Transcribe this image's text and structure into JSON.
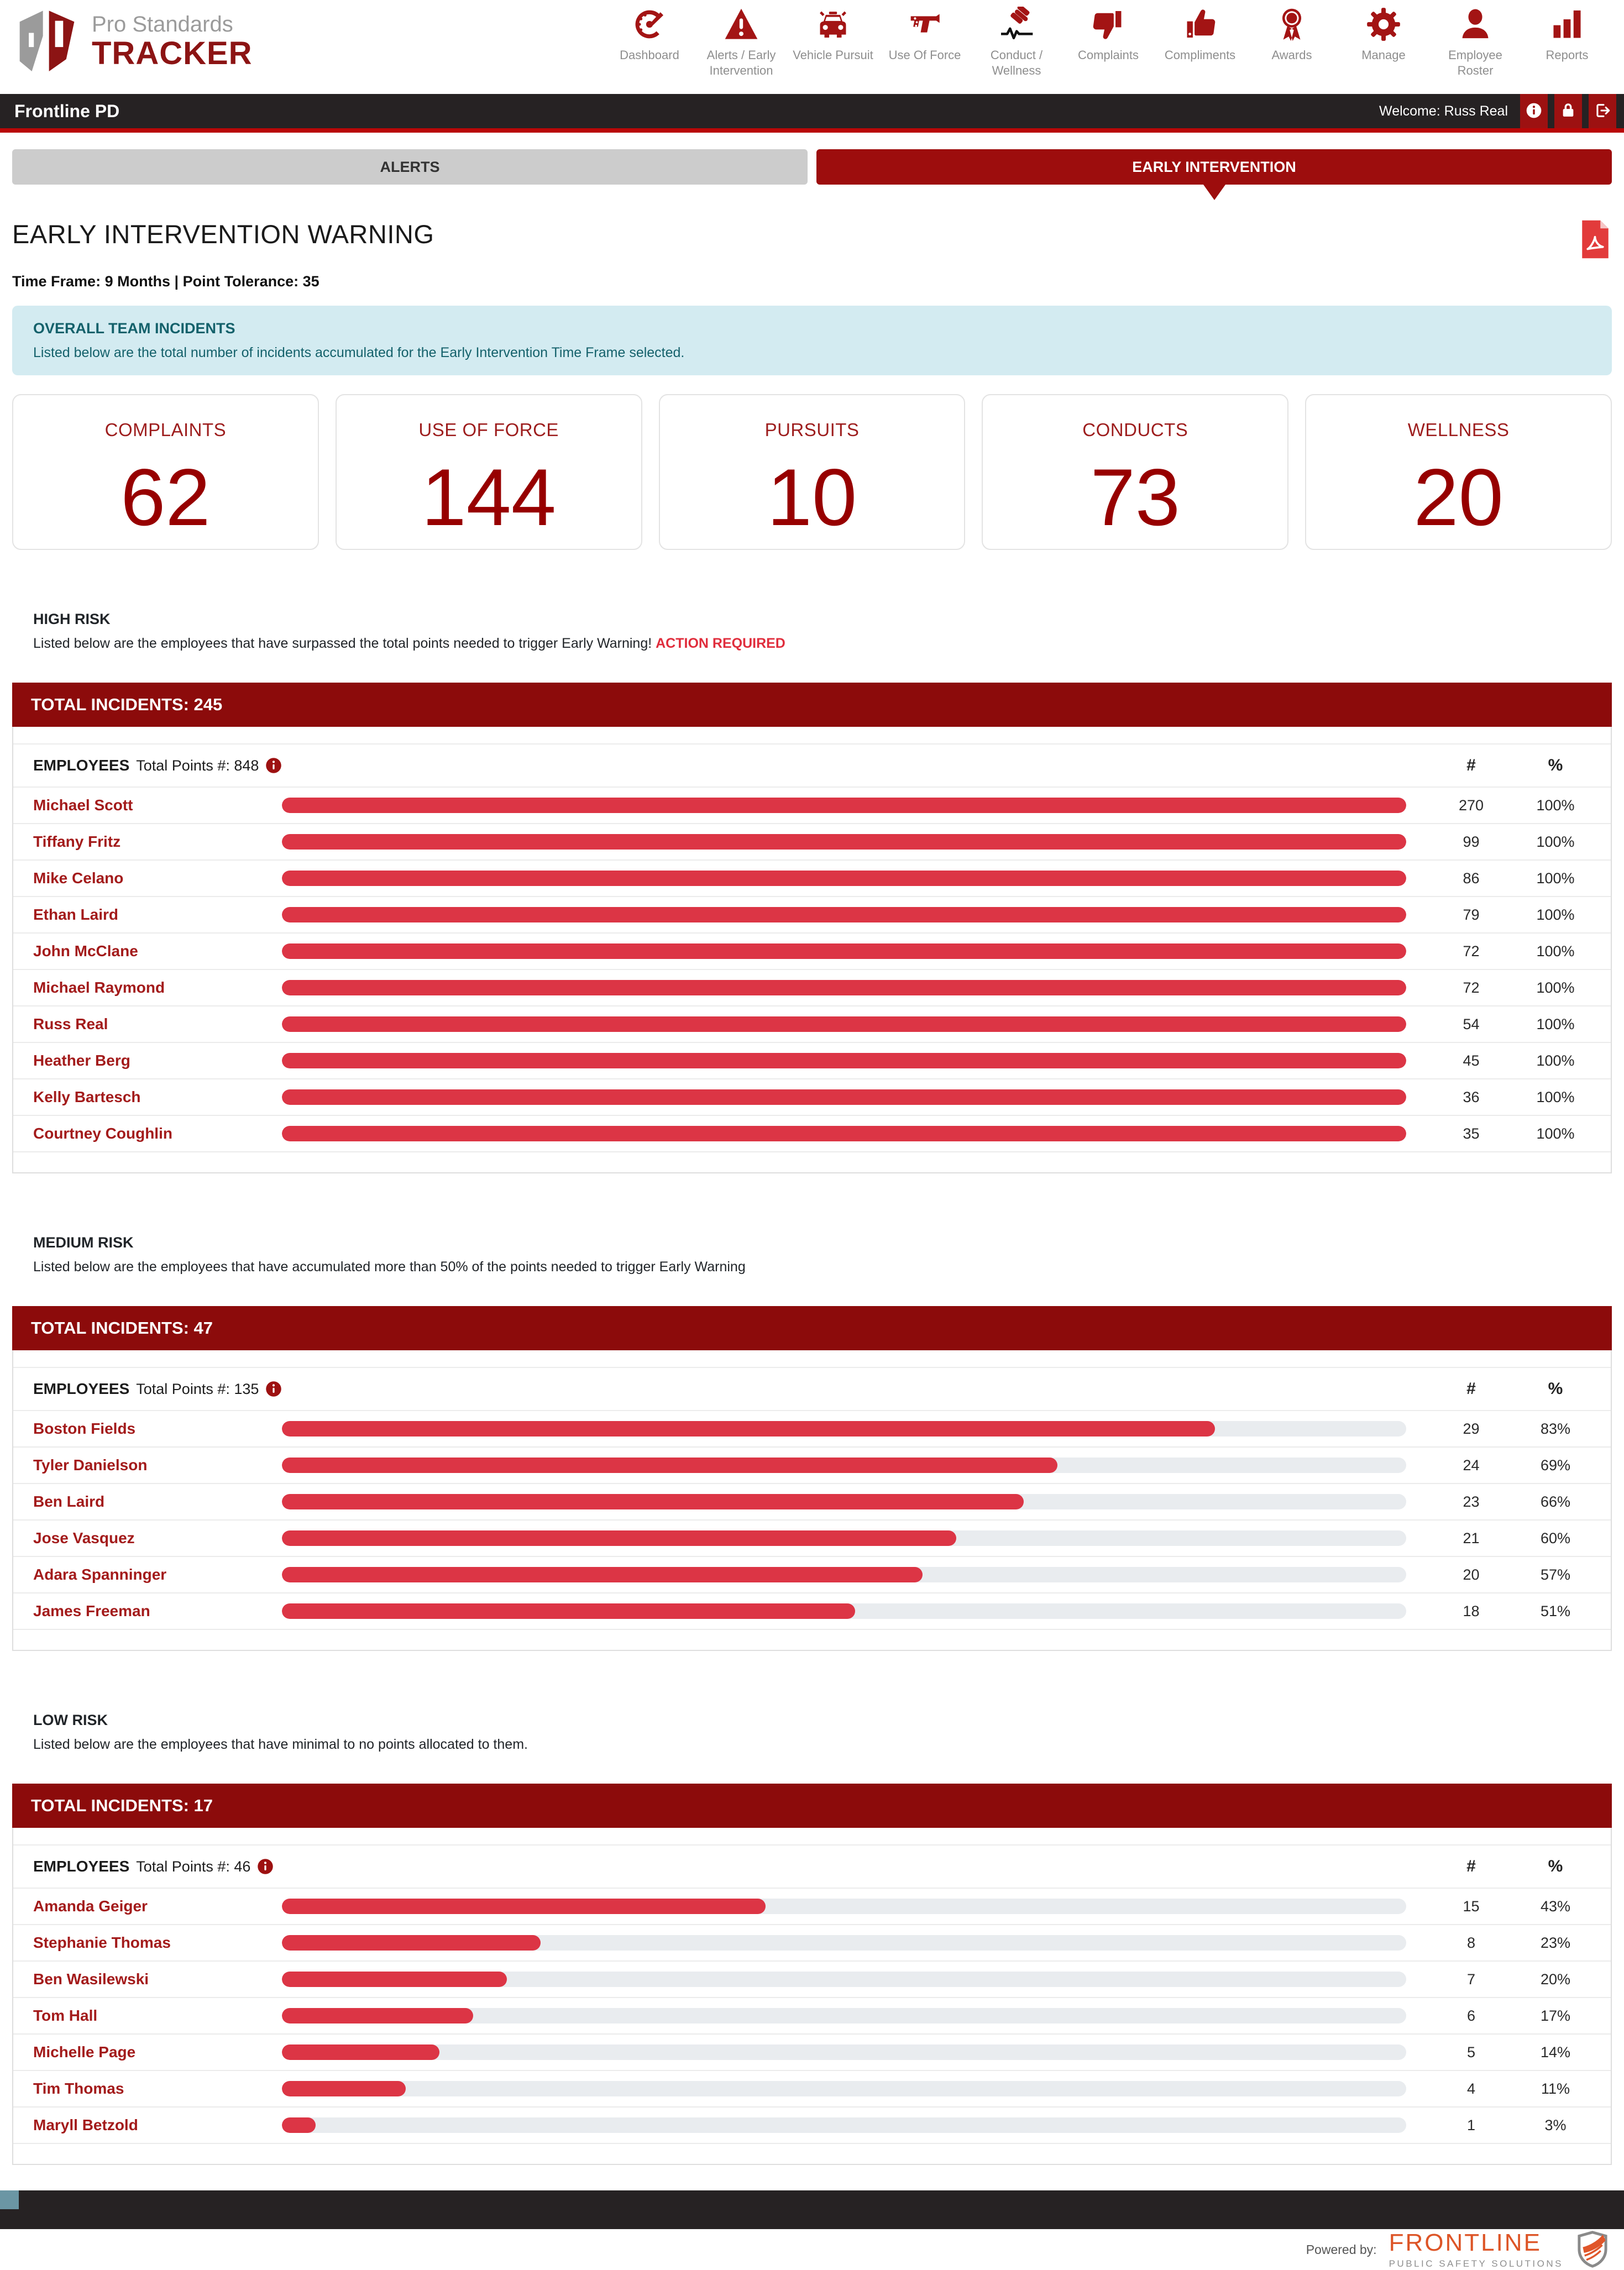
{
  "brand": {
    "name_line1": "Pro Standards",
    "name_line2": "TRACKER"
  },
  "nav": {
    "items": [
      {
        "label": "Dashboard",
        "icon": "dashboard-icon",
        "active": false
      },
      {
        "label": "Alerts / Early Intervention",
        "icon": "alert-triangle-icon",
        "active": true
      },
      {
        "label": "Vehicle Pursuit",
        "icon": "police-car-icon",
        "active": false
      },
      {
        "label": "Use Of Force",
        "icon": "taser-icon",
        "active": false
      },
      {
        "label": "Conduct / Wellness",
        "icon": "gavel-pulse-icon",
        "active": false
      },
      {
        "label": "Complaints",
        "icon": "thumbs-down-icon",
        "active": false
      },
      {
        "label": "Compliments",
        "icon": "thumbs-up-icon",
        "active": false
      },
      {
        "label": "Awards",
        "icon": "award-ribbon-icon",
        "active": false
      },
      {
        "label": "Manage",
        "icon": "gear-icon",
        "active": true
      },
      {
        "label": "Employee Roster",
        "icon": "person-icon",
        "active": false
      },
      {
        "label": "Reports",
        "icon": "bar-chart-icon",
        "active": false
      }
    ]
  },
  "topbar": {
    "agency": "Frontline PD",
    "welcome": "Welcome: Russ Real"
  },
  "tabs": {
    "alerts": {
      "label": "ALERTS"
    },
    "early_intervention": {
      "label": "EARLY INTERVENTION"
    }
  },
  "page": {
    "title": "EARLY INTERVENTION WARNING",
    "meta": "Time Frame: 9 Months | Point Tolerance: 35"
  },
  "overall": {
    "title": "OVERALL TEAM INCIDENTS",
    "description": "Listed below are the total number of incidents accumulated for the Early Intervention Time Frame selected."
  },
  "stats": [
    {
      "label": "COMPLAINTS",
      "value": "62"
    },
    {
      "label": "USE OF FORCE",
      "value": "144"
    },
    {
      "label": "PURSUITS",
      "value": "10"
    },
    {
      "label": "CONDUCTS",
      "value": "73"
    },
    {
      "label": "WELLNESS",
      "value": "20"
    }
  ],
  "sections": [
    {
      "tone": "high",
      "alert_title": "HIGH RISK",
      "alert_text": "Listed below are the employees that have surpassed the total points needed to trigger Early Warning! ",
      "alert_extra": "ACTION REQUIRED",
      "banner": "TOTAL INCIDENTS: 245",
      "employees_label": "EMPLOYEES",
      "points_label": "Total Points #: 848",
      "col_num": "#",
      "col_pct": "%",
      "rows": [
        {
          "name": "Michael Scott",
          "num": "270",
          "pct": "100%",
          "fill": 100
        },
        {
          "name": "Tiffany Fritz",
          "num": "99",
          "pct": "100%",
          "fill": 100
        },
        {
          "name": "Mike Celano",
          "num": "86",
          "pct": "100%",
          "fill": 100
        },
        {
          "name": "Ethan Laird",
          "num": "79",
          "pct": "100%",
          "fill": 100
        },
        {
          "name": "John McClane",
          "num": "72",
          "pct": "100%",
          "fill": 100
        },
        {
          "name": "Michael Raymond",
          "num": "72",
          "pct": "100%",
          "fill": 100
        },
        {
          "name": "Russ Real",
          "num": "54",
          "pct": "100%",
          "fill": 100
        },
        {
          "name": "Heather Berg",
          "num": "45",
          "pct": "100%",
          "fill": 100
        },
        {
          "name": "Kelly Bartesch",
          "num": "36",
          "pct": "100%",
          "fill": 100
        },
        {
          "name": "Courtney Coughlin",
          "num": "35",
          "pct": "100%",
          "fill": 100
        }
      ]
    },
    {
      "tone": "medium",
      "alert_title": "MEDIUM RISK",
      "alert_text": "Listed below are the employees that have accumulated more than 50% of the points needed to trigger Early Warning",
      "alert_extra": "",
      "banner": "TOTAL INCIDENTS: 47",
      "employees_label": "EMPLOYEES",
      "points_label": "Total Points #: 135",
      "col_num": "#",
      "col_pct": "%",
      "rows": [
        {
          "name": "Boston Fields",
          "num": "29",
          "pct": "83%",
          "fill": 83
        },
        {
          "name": "Tyler Danielson",
          "num": "24",
          "pct": "69%",
          "fill": 69
        },
        {
          "name": "Ben Laird",
          "num": "23",
          "pct": "66%",
          "fill": 66
        },
        {
          "name": "Jose Vasquez",
          "num": "21",
          "pct": "60%",
          "fill": 60
        },
        {
          "name": "Adara Spanninger",
          "num": "20",
          "pct": "57%",
          "fill": 57
        },
        {
          "name": "James Freeman",
          "num": "18",
          "pct": "51%",
          "fill": 51
        }
      ]
    },
    {
      "tone": "low",
      "alert_title": "LOW RISK",
      "alert_text": "Listed below are the employees that have minimal to no points allocated to them.",
      "alert_extra": "",
      "banner": "TOTAL INCIDENTS: 17",
      "employees_label": "EMPLOYEES",
      "points_label": "Total Points #: 46",
      "col_num": "#",
      "col_pct": "%",
      "rows": [
        {
          "name": "Amanda Geiger",
          "num": "15",
          "pct": "43%",
          "fill": 43
        },
        {
          "name": "Stephanie Thomas",
          "num": "8",
          "pct": "23%",
          "fill": 23
        },
        {
          "name": "Ben Wasilewski",
          "num": "7",
          "pct": "20%",
          "fill": 20
        },
        {
          "name": "Tom Hall",
          "num": "6",
          "pct": "17%",
          "fill": 17
        },
        {
          "name": "Michelle Page",
          "num": "5",
          "pct": "14%",
          "fill": 14
        },
        {
          "name": "Tim Thomas",
          "num": "4",
          "pct": "11%",
          "fill": 11
        },
        {
          "name": "Maryll Betzold",
          "num": "1",
          "pct": "3%",
          "fill": 3
        }
      ]
    }
  ],
  "footer": {
    "powered_by": "Powered by:",
    "brand": "FRONTLINE",
    "brand_sub": "PUBLIC SAFETY SOLUTIONS"
  },
  "colors": {
    "accent_dark_red": "#8c0b0b",
    "tab_red": "#9d0d0d",
    "bar_fill": "#dc3545",
    "bar_track": "#e9ecef",
    "topbar_dark": "#262223",
    "hairline_red": "#b90707",
    "frontline_orange": "#dd5527"
  }
}
